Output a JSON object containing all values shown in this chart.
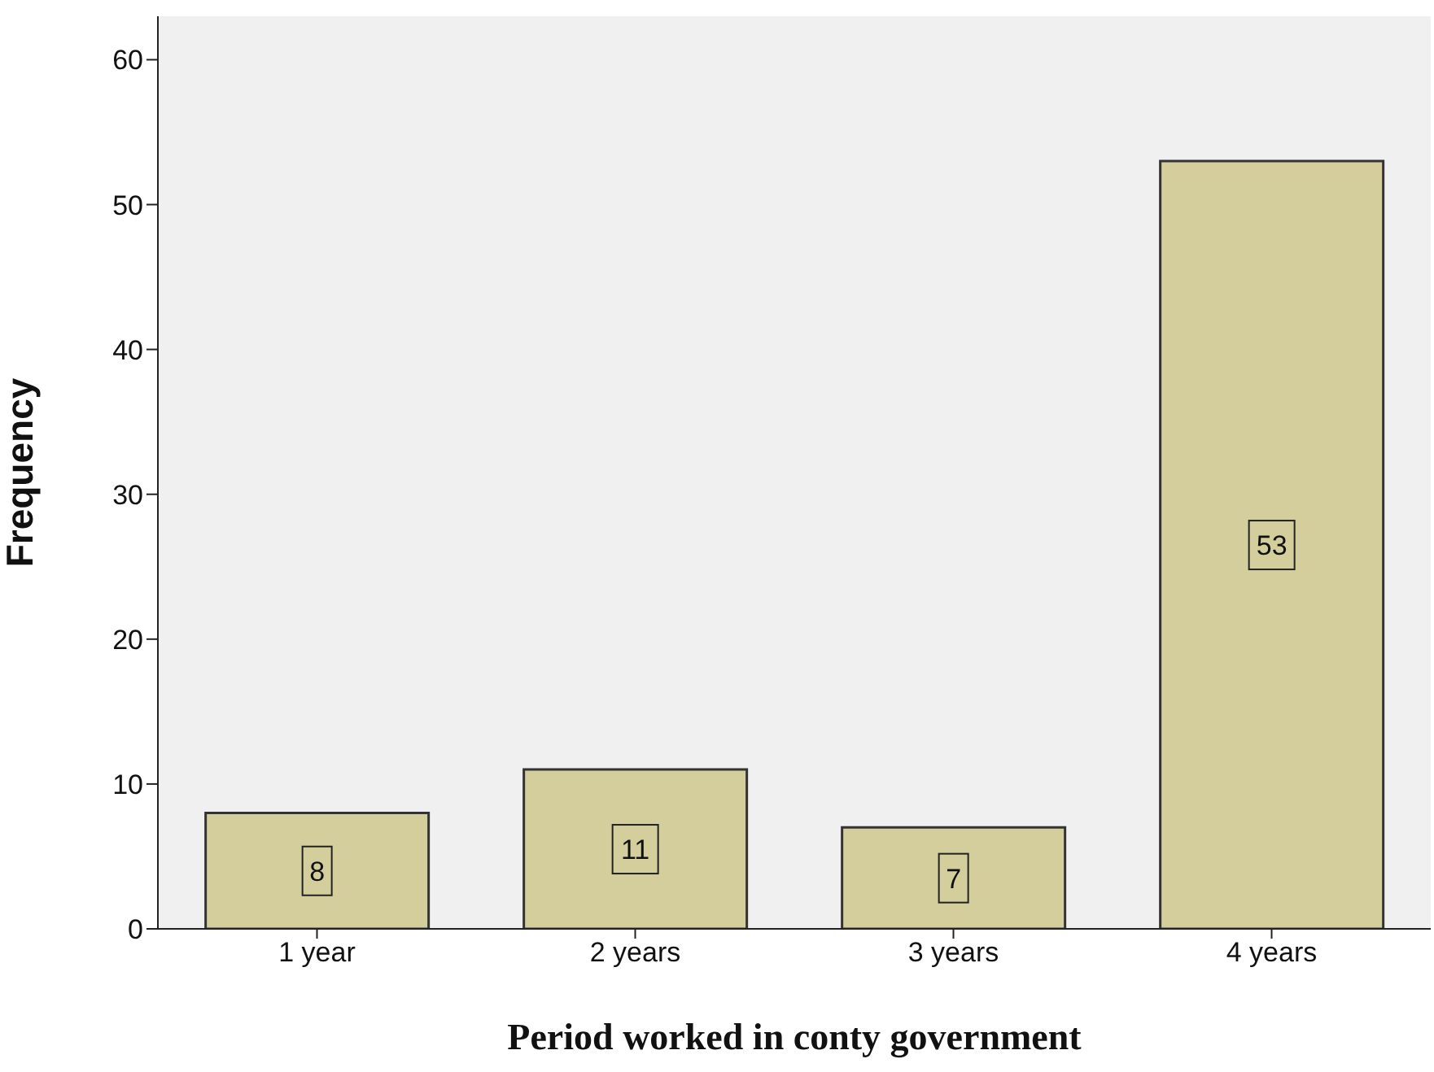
{
  "chart_data": {
    "type": "bar",
    "xlabel": "Period worked in conty government",
    "ylabel": "Frequency",
    "categories": [
      "1 year",
      "2 years",
      "3 years",
      "4 years"
    ],
    "values": [
      8,
      11,
      7,
      53
    ],
    "color": "#d3ce9b",
    "ylim": [
      0,
      63
    ],
    "yticks": [
      0,
      10,
      20,
      30,
      40,
      50,
      60
    ],
    "grid": false,
    "data_labels": true
  }
}
